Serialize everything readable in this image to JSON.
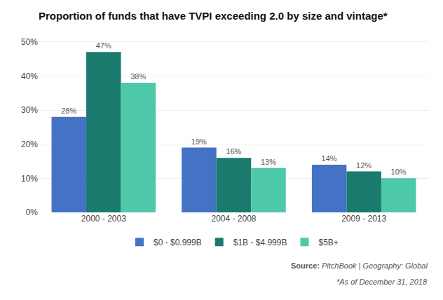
{
  "chart_data": {
    "type": "bar",
    "title": "Proportion of funds that have TVPI exceeding 2.0 by size and vintage*",
    "categories": [
      "2000 - 2003",
      "2004 - 2008",
      "2009 - 2013"
    ],
    "series": [
      {
        "name": "$0 - $0.999B",
        "color": "#4472C4",
        "values": [
          0.28,
          0.19,
          0.14
        ],
        "value_labels": [
          "28%",
          "19%",
          "14%"
        ]
      },
      {
        "name": "$1B - $4.999B",
        "color": "#1A7A6E",
        "values": [
          0.47,
          0.16,
          0.12
        ],
        "value_labels": [
          "47%",
          "16%",
          "12%"
        ]
      },
      {
        "name": "$5B+",
        "color": "#4DC8A8",
        "values": [
          0.38,
          0.13,
          0.1
        ],
        "value_labels": [
          "38%",
          "13%",
          "10%"
        ]
      }
    ],
    "ylim": [
      0,
      0.52
    ],
    "yticks": [
      {
        "value": 0.0,
        "label": "0%"
      },
      {
        "value": 0.1,
        "label": "10%"
      },
      {
        "value": 0.2,
        "label": "20%"
      },
      {
        "value": 0.3,
        "label": "30%"
      },
      {
        "value": 0.4,
        "label": "40%"
      },
      {
        "value": 0.5,
        "label": "50%"
      }
    ],
    "grid": true,
    "legend": "bottom",
    "data_labels": true,
    "annotations": [
      "Source:",
      "PitchBook | Geography: Global",
      "*As of December 31, 2018"
    ]
  }
}
